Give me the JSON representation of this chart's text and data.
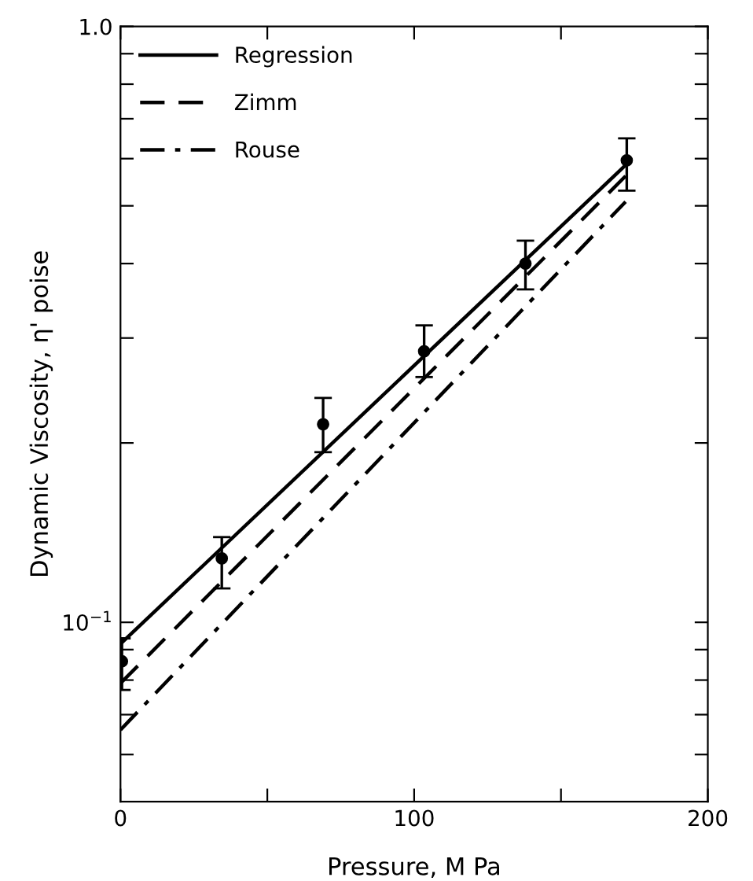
{
  "chart_data": {
    "type": "line",
    "xlabel": "Pressure, M Pa",
    "ylabel": "Dynamic Viscosity, η' poise",
    "log": "y",
    "xlim": [
      0,
      200
    ],
    "ylim": [
      0.05,
      1.0
    ],
    "xticks": [
      0,
      {
        "value": 50,
        "label": null
      },
      100,
      {
        "value": 150,
        "label": null
      },
      200
    ],
    "yticks": [
      {
        "value": 0.06,
        "label": null
      },
      {
        "value": 0.07,
        "label": null
      },
      {
        "value": 0.08,
        "label": null
      },
      {
        "value": 0.09,
        "label": null
      },
      {
        "value": 0.1,
        "label": "10$^{−1}$"
      },
      {
        "value": 0.2,
        "label": null
      },
      {
        "value": 0.3,
        "label": null
      },
      {
        "value": 0.4,
        "label": null
      },
      {
        "value": 0.5,
        "label": null
      },
      {
        "value": 0.6,
        "label": null
      },
      {
        "value": 0.7,
        "label": null
      },
      {
        "value": 0.8,
        "label": null
      },
      {
        "value": 0.9,
        "label": null
      },
      {
        "value": 1.0,
        "label": "1.0"
      }
    ],
    "grid": false,
    "legend": "top left",
    "series": [
      {
        "type": "scatter",
        "color": "#000000",
        "marker": "circle",
        "x": [
          0.5,
          34.5,
          69,
          103.4,
          137.9,
          172.4
        ],
        "values": [
          0.086,
          0.128,
          0.215,
          0.285,
          0.4,
          0.596
        ],
        "errors": [
          [
            0.077,
            0.094
          ],
          [
            0.114,
            0.139
          ],
          [
            0.193,
            0.238
          ],
          [
            0.258,
            0.315
          ],
          [
            0.362,
            0.437
          ],
          [
            0.53,
            0.649
          ]
        ]
      },
      {
        "name": "Regression",
        "color": "#000000",
        "line_style": "solid",
        "x": [
          0,
          172
        ],
        "values": [
          0.092,
          0.585
        ]
      },
      {
        "name": "Zimm",
        "color": "#000000",
        "line_style": "dashed",
        "x": [
          0,
          172
        ],
        "values": [
          0.079,
          0.561
        ]
      },
      {
        "name": "Rouse",
        "color": "#000000",
        "line_style": "dashdot",
        "x": [
          0,
          172
        ],
        "values": [
          0.066,
          0.508
        ]
      }
    ]
  }
}
